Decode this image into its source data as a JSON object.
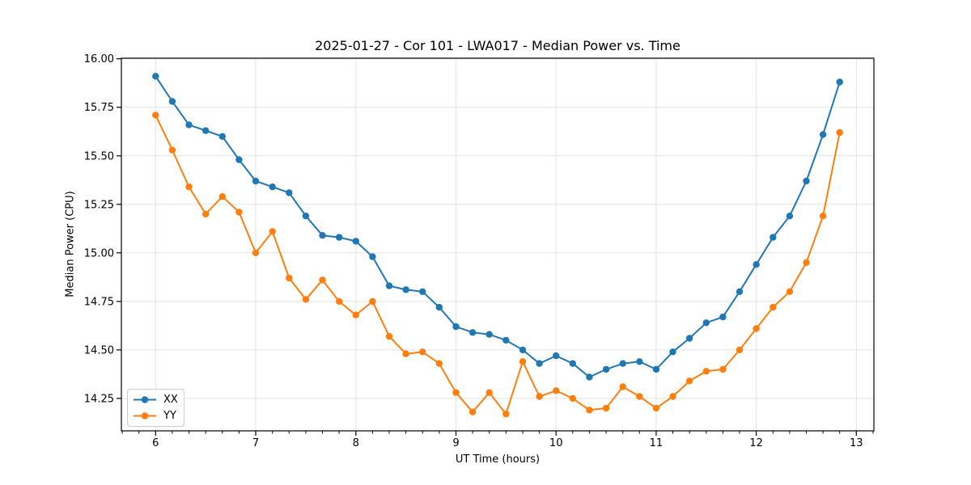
{
  "chart_data": {
    "type": "line",
    "title": "2025-01-27 - Cor 101 - LWA017 - Median Power vs. Time",
    "xlabel": "UT Time (hours)",
    "ylabel": "Median Power (CPU)",
    "xlim": [
      5.658,
      13.175
    ],
    "ylim": [
      14.083,
      16.003
    ],
    "xticks": [
      6,
      7,
      8,
      9,
      10,
      11,
      12,
      13
    ],
    "xticklabels": [
      "6",
      "7",
      "8",
      "9",
      "10",
      "11",
      "12",
      "13"
    ],
    "xtick_minor_step": 0.16667,
    "yticks": [
      14.25,
      14.5,
      14.75,
      15.0,
      15.25,
      15.5,
      15.75,
      16.0
    ],
    "yticklabels": [
      "14.25",
      "14.50",
      "14.75",
      "15.00",
      "15.25",
      "15.50",
      "15.75",
      "16.00"
    ],
    "grid": true,
    "grid_color": "#e3e3e3",
    "legend_position": "lower-left",
    "x": [
      6,
      6.1667,
      6.3333,
      6.5,
      6.6667,
      6.8333,
      7,
      7.1667,
      7.3333,
      7.5,
      7.6667,
      7.8333,
      8,
      8.1667,
      8.3333,
      8.5,
      8.6667,
      8.8333,
      9,
      9.1667,
      9.3333,
      9.5,
      9.6667,
      9.8333,
      10,
      10.1667,
      10.3333,
      10.5,
      10.6667,
      10.8333,
      11,
      11.1667,
      11.3333,
      11.5,
      11.6667,
      11.8333,
      12,
      12.1667,
      12.3333,
      12.5,
      12.6667,
      12.8333
    ],
    "series": [
      {
        "name": "XX",
        "color": "#1f77b4",
        "values": [
          15.91,
          15.78,
          15.66,
          15.63,
          15.6,
          15.48,
          15.37,
          15.34,
          15.31,
          15.19,
          15.09,
          15.08,
          15.06,
          14.98,
          14.83,
          14.81,
          14.8,
          14.72,
          14.62,
          14.59,
          14.58,
          14.55,
          14.5,
          14.43,
          14.47,
          14.43,
          14.36,
          14.4,
          14.43,
          14.44,
          14.4,
          14.49,
          14.56,
          14.64,
          14.67,
          14.8,
          14.94,
          15.08,
          15.19,
          15.37,
          15.61,
          15.88
        ]
      },
      {
        "name": "YY",
        "color": "#ff7f0e",
        "values": [
          15.71,
          15.53,
          15.34,
          15.2,
          15.29,
          15.21,
          15.0,
          15.11,
          14.87,
          14.76,
          14.86,
          14.75,
          14.68,
          14.75,
          14.57,
          14.48,
          14.49,
          14.43,
          14.28,
          14.18,
          14.28,
          14.17,
          14.44,
          14.26,
          14.29,
          14.25,
          14.19,
          14.2,
          14.31,
          14.26,
          14.2,
          14.26,
          14.34,
          14.39,
          14.4,
          14.5,
          14.61,
          14.72,
          14.8,
          14.95,
          15.19,
          15.62
        ]
      }
    ]
  }
}
